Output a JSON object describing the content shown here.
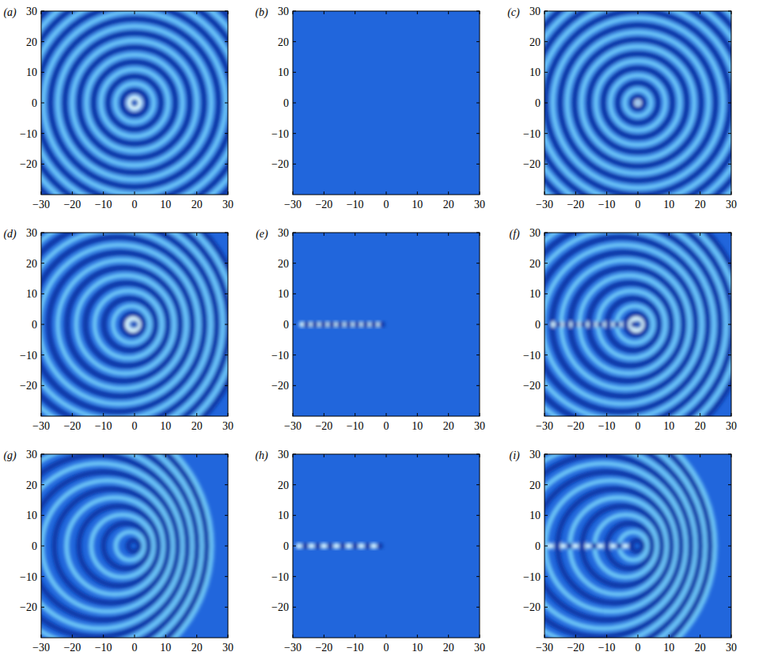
{
  "chart_data": [
    {
      "type": "heatmap",
      "title": "(a)",
      "xlim": [
        -30,
        30
      ],
      "ylim": [
        -30,
        30
      ],
      "xticks": [
        {
          "value": -30,
          "label": "−30"
        },
        {
          "value": -20,
          "label": "−20"
        },
        {
          "value": -10,
          "label": "−10"
        },
        0,
        10,
        20,
        30
      ],
      "yticks": [
        {
          "value": -20,
          "label": "−20"
        },
        {
          "value": -10,
          "label": "−10"
        },
        0,
        10,
        20,
        30
      ],
      "dark_rings": {
        "x": [
          0,
          0,
          0,
          0,
          0,
          0,
          0,
          0,
          0,
          0
        ],
        "r": [
          0.3,
          4,
          8.7,
          13.4,
          18.1,
          22.8,
          27.5,
          32.2,
          36.9,
          41.6
        ]
      },
      "light_rings": {
        "x": [
          0,
          0,
          0,
          0,
          0,
          0,
          0,
          0,
          0
        ],
        "r": [
          1.8,
          6.3,
          11,
          15.7,
          20.4,
          25.1,
          29.8,
          34.5,
          39.2
        ]
      },
      "dark_dots": {
        "x": []
      },
      "light_dots": {
        "x": []
      }
    },
    {
      "type": "heatmap",
      "title": "(b)",
      "xlim": [
        -30,
        30
      ],
      "ylim": [
        -30,
        30
      ],
      "xticks": [
        {
          "value": -30,
          "label": "−30"
        },
        {
          "value": -20,
          "label": "−20"
        },
        {
          "value": -10,
          "label": "−10"
        },
        0,
        10,
        20,
        30
      ],
      "yticks": [
        {
          "value": -20,
          "label": "−20"
        },
        {
          "value": -10,
          "label": "−10"
        },
        0,
        10,
        20,
        30
      ],
      "dark_rings": {
        "x": [],
        "r": []
      },
      "light_rings": {
        "x": [],
        "r": []
      },
      "dark_dots": {
        "x": []
      },
      "light_dots": {
        "x": []
      }
    },
    {
      "type": "heatmap",
      "title": "(c)",
      "xlim": [
        -30,
        30
      ],
      "ylim": [
        -30,
        30
      ],
      "xticks": [
        {
          "value": -30,
          "label": "−30"
        },
        {
          "value": -20,
          "label": "−20"
        },
        {
          "value": -10,
          "label": "−10"
        },
        0,
        10,
        20,
        30
      ],
      "yticks": [
        {
          "value": -20,
          "label": "−20"
        },
        {
          "value": -10,
          "label": "−10"
        },
        0,
        10,
        20,
        30
      ],
      "dark_rings": {
        "x": [
          0,
          0,
          0,
          0,
          0,
          0,
          0,
          0,
          0
        ],
        "r": [
          2,
          6.6,
          11.3,
          16,
          20.7,
          25.4,
          30.1,
          34.8,
          39.5
        ]
      },
      "light_rings": {
        "x": [
          0,
          0,
          0,
          0,
          0,
          0,
          0,
          0,
          0,
          0
        ],
        "r": [
          0.4,
          4.3,
          9,
          13.7,
          18.4,
          23.1,
          27.8,
          32.5,
          37.2,
          41.9
        ]
      },
      "dark_dots": {
        "x": []
      },
      "light_dots": {
        "x": []
      }
    },
    {
      "type": "heatmap",
      "title": "(d)",
      "xlim": [
        -30,
        30
      ],
      "ylim": [
        -30,
        30
      ],
      "xticks": [
        {
          "value": -30,
          "label": "−30"
        },
        {
          "value": -20,
          "label": "−20"
        },
        {
          "value": -10,
          "label": "−10"
        },
        0,
        10,
        20,
        30
      ],
      "yticks": [
        {
          "value": -20,
          "label": "−20"
        },
        {
          "value": -10,
          "label": "−10"
        },
        0,
        10,
        20,
        30
      ],
      "dark_rings": {
        "x": [
          0,
          -0.5,
          -1.5,
          -2.5,
          -3.5,
          -4.5,
          -5.5,
          -6.5,
          -7.5,
          -8.5
        ],
        "r": [
          0.3,
          3.5,
          8.5,
          13.5,
          18.5,
          23.5,
          28.5,
          33.5,
          38.5,
          43.5
        ]
      },
      "light_rings": {
        "x": [
          -0.5,
          -1,
          -2,
          -3,
          -4,
          -5,
          -6,
          -7,
          -8
        ],
        "r": [
          2,
          6,
          11,
          16,
          21,
          26,
          31,
          36,
          41
        ]
      },
      "dark_dots": {
        "x": []
      },
      "light_dots": {
        "x": []
      }
    },
    {
      "type": "heatmap",
      "title": "(e)",
      "xlim": [
        -30,
        30
      ],
      "ylim": [
        -30,
        30
      ],
      "xticks": [
        {
          "value": -30,
          "label": "−30"
        },
        {
          "value": -20,
          "label": "−20"
        },
        {
          "value": -10,
          "label": "−10"
        },
        0,
        10,
        20,
        30
      ],
      "yticks": [
        {
          "value": -20,
          "label": "−20"
        },
        {
          "value": -10,
          "label": "−10"
        },
        0,
        10,
        20,
        30
      ],
      "dark_rings": {
        "x": [],
        "r": []
      },
      "light_rings": {
        "x": [],
        "r": []
      },
      "dark_dots": {
        "x": [
          -25.6,
          -22.9,
          -20.2,
          -17.5,
          -14.8,
          -12.1,
          -9.4,
          -6.7,
          -4,
          -1.3
        ]
      },
      "light_dots": {
        "x": [
          -27,
          -24.3,
          -21.6,
          -18.9,
          -16.2,
          -13.5,
          -10.8,
          -8.1,
          -5.4,
          -2.7
        ]
      }
    },
    {
      "type": "heatmap",
      "title": "(f)",
      "xlim": [
        -30,
        30
      ],
      "ylim": [
        -30,
        30
      ],
      "xticks": [
        {
          "value": -30,
          "label": "−30"
        },
        {
          "value": -20,
          "label": "−20"
        },
        {
          "value": -10,
          "label": "−10"
        },
        0,
        10,
        20,
        30
      ],
      "yticks": [
        {
          "value": -20,
          "label": "−20"
        },
        {
          "value": -10,
          "label": "−10"
        },
        0,
        10,
        20,
        30
      ],
      "dark_rings": {
        "x": [
          0,
          -0.5,
          -1.5,
          -2.5,
          -3.5,
          -4.5,
          -5.5,
          -6.5,
          -7.5,
          -8.5
        ],
        "r": [
          0.3,
          3.5,
          8.5,
          13.5,
          18.5,
          23.5,
          28.5,
          33.5,
          38.5,
          43.5
        ]
      },
      "light_rings": {
        "x": [
          -0.5,
          -1,
          -2,
          -3,
          -4,
          -5,
          -6,
          -7,
          -8
        ],
        "r": [
          2,
          6,
          11,
          16,
          21,
          26,
          31,
          36,
          41
        ]
      },
      "dark_dots": {
        "x": [
          -25.6,
          -22.9,
          -20.2,
          -17.5,
          -14.8,
          -12.1,
          -9.4,
          -6.7,
          -4,
          -1.3
        ]
      },
      "light_dots": {
        "x": [
          -27,
          -24.3,
          -21.6,
          -18.9,
          -16.2,
          -13.5,
          -10.8,
          -8.1,
          -5.4,
          -2.7
        ]
      }
    },
    {
      "type": "heatmap",
      "title": "(g)",
      "xlim": [
        -30,
        30
      ],
      "ylim": [
        -30,
        30
      ],
      "xticks": [
        {
          "value": -30,
          "label": "−30"
        },
        {
          "value": -20,
          "label": "−20"
        },
        {
          "value": -10,
          "label": "−10"
        },
        0,
        10,
        20,
        30
      ],
      "yticks": [
        {
          "value": -20,
          "label": "−20"
        },
        {
          "value": -10,
          "label": "−10"
        },
        0,
        10,
        20,
        30
      ],
      "dark_rings": {
        "x": [
          -0.3,
          -2.7,
          -5.1,
          -7.5,
          -9.9,
          -12.3,
          -14.7,
          -17.1
        ],
        "r": [
          1.8,
          7.4,
          13,
          18.6,
          24.2,
          29.8,
          35.4,
          41
        ]
      },
      "light_rings": {
        "x": [
          -1.5,
          -3.9,
          -6.3,
          -8.7,
          -11.1,
          -13.5,
          -15.9,
          -18.3
        ],
        "r": [
          4.6,
          10.2,
          15.8,
          21.4,
          27,
          32.6,
          38.2,
          43.8
        ]
      },
      "dark_dots": {
        "x": []
      },
      "light_dots": {
        "x": []
      }
    },
    {
      "type": "heatmap",
      "title": "(h)",
      "xlim": [
        -30,
        30
      ],
      "ylim": [
        -30,
        30
      ],
      "xticks": [
        {
          "value": -30,
          "label": "−30"
        },
        {
          "value": -20,
          "label": "−20"
        },
        {
          "value": -10,
          "label": "−10"
        },
        0,
        10,
        20,
        30
      ],
      "yticks": [
        {
          "value": -20,
          "label": "−20"
        },
        {
          "value": -10,
          "label": "−10"
        },
        0,
        10,
        20,
        30
      ],
      "dark_rings": {
        "x": [],
        "r": []
      },
      "light_rings": {
        "x": [],
        "r": []
      },
      "dark_dots": {
        "x": [
          -26,
          -22,
          -18,
          -14,
          -10,
          -6,
          -2
        ]
      },
      "light_dots": {
        "x": [
          -28,
          -24,
          -20,
          -16,
          -12,
          -8,
          -4
        ]
      }
    },
    {
      "type": "heatmap",
      "title": "(i)",
      "xlim": [
        -30,
        30
      ],
      "ylim": [
        -30,
        30
      ],
      "xticks": [
        {
          "value": -30,
          "label": "−30"
        },
        {
          "value": -20,
          "label": "−20"
        },
        {
          "value": -10,
          "label": "−10"
        },
        0,
        10,
        20,
        30
      ],
      "yticks": [
        {
          "value": -20,
          "label": "−20"
        },
        {
          "value": -10,
          "label": "−10"
        },
        0,
        10,
        20,
        30
      ],
      "dark_rings": {
        "x": [
          -0.3,
          -2.7,
          -5.1,
          -7.5,
          -9.9,
          -12.3,
          -14.7,
          -17.1
        ],
        "r": [
          1.8,
          7.4,
          13,
          18.6,
          24.2,
          29.8,
          35.4,
          41
        ]
      },
      "light_rings": {
        "x": [
          -1.5,
          -3.9,
          -6.3,
          -8.7,
          -11.1,
          -13.5,
          -15.9,
          -18.3
        ],
        "r": [
          4.6,
          10.2,
          15.8,
          21.4,
          27,
          32.6,
          38.2,
          43.8
        ]
      },
      "dark_dots": {
        "x": [
          -26,
          -22,
          -18,
          -14,
          -10,
          -6,
          -2
        ]
      },
      "light_dots": {
        "x": [
          -28,
          -24,
          -20,
          -16,
          -12,
          -8,
          -4
        ]
      }
    }
  ]
}
